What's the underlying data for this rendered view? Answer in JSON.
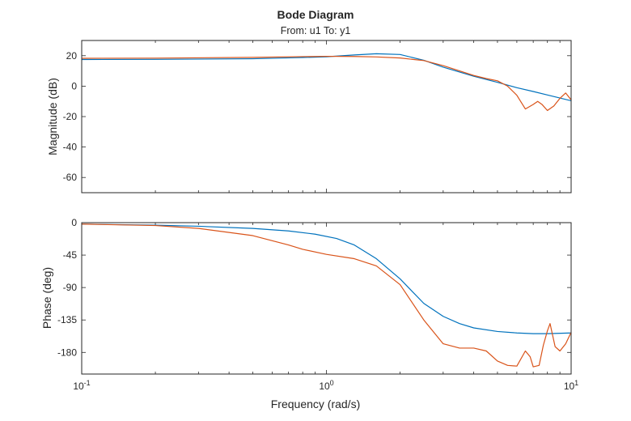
{
  "figure": {
    "title": "Bode Diagram",
    "subtitle": "From: u1  To: y1",
    "xlabel": "Frequency (rad/s)"
  },
  "chart_data": [
    {
      "type": "line",
      "panel": "magnitude",
      "ylabel": "Magnitude (dB)",
      "xscale": "log",
      "xlim": [
        0.1,
        10
      ],
      "ylim": [
        -70,
        30
      ],
      "yticks": [
        20,
        0,
        -20,
        -40,
        -60
      ],
      "ytick_labels": [
        "20",
        "0",
        "-20",
        "-40",
        "-60"
      ],
      "grid": false,
      "series": [
        {
          "color": "#0072BD",
          "x": [
            0.1,
            0.2,
            0.5,
            0.8,
            1.0,
            1.3,
            1.6,
            2.0,
            2.5,
            3.0,
            4.0,
            5.0,
            6.0,
            7.0,
            8.0,
            9.0,
            10.0
          ],
          "y": [
            17.5,
            17.6,
            18.0,
            18.8,
            19.3,
            20.5,
            21.3,
            20.8,
            17.0,
            12.5,
            6.5,
            2.5,
            -1.0,
            -3.5,
            -5.8,
            -7.8,
            -9.6
          ]
        },
        {
          "color": "#D95319",
          "x": [
            0.1,
            0.2,
            0.5,
            0.8,
            1.0,
            1.3,
            1.6,
            2.0,
            2.5,
            3.0,
            3.5,
            4.0,
            4.5,
            5.0,
            5.5,
            6.0,
            6.5,
            7.0,
            7.3,
            7.6,
            8.0,
            8.5,
            9.0,
            9.5,
            10.0
          ],
          "y": [
            18.3,
            18.4,
            18.9,
            19.4,
            19.6,
            19.5,
            19.2,
            18.5,
            16.8,
            13.5,
            10.0,
            7.0,
            5.0,
            3.5,
            0.0,
            -6.0,
            -15.0,
            -12.0,
            -10.0,
            -12.0,
            -16.0,
            -13.0,
            -8.0,
            -4.5,
            -9.0
          ]
        }
      ]
    },
    {
      "type": "line",
      "panel": "phase",
      "ylabel": "Phase (deg)",
      "xscale": "log",
      "xlim": [
        0.1,
        10
      ],
      "xticks": [
        0.1,
        1,
        10
      ],
      "xtick_labels": [
        {
          "base": "10",
          "exp": "-1"
        },
        {
          "base": "10",
          "exp": "0"
        },
        {
          "base": "10",
          "exp": "1"
        }
      ],
      "ylim": [
        -210,
        0
      ],
      "yticks": [
        0,
        -45,
        -90,
        -135,
        -180
      ],
      "ytick_labels": [
        "0",
        "-45",
        "-90",
        "-135",
        "-180"
      ],
      "grid": false,
      "series": [
        {
          "color": "#0072BD",
          "x": [
            0.1,
            0.2,
            0.3,
            0.5,
            0.7,
            0.9,
            1.1,
            1.3,
            1.6,
            2.0,
            2.5,
            3.0,
            3.5,
            4.0,
            5.0,
            6.0,
            7.0,
            8.0,
            10.0
          ],
          "y": [
            -2,
            -3.5,
            -5,
            -8,
            -11.5,
            -16,
            -22,
            -31,
            -50,
            -78,
            -112,
            -130,
            -140,
            -146,
            -151,
            -153,
            -154,
            -154,
            -153
          ]
        },
        {
          "color": "#D95319",
          "x": [
            0.1,
            0.2,
            0.3,
            0.5,
            0.7,
            0.8,
            1.0,
            1.3,
            1.6,
            2.0,
            2.5,
            3.0,
            3.5,
            4.0,
            4.5,
            5.0,
            5.5,
            6.0,
            6.5,
            6.8,
            7.0,
            7.4,
            7.7,
            8.0,
            8.2,
            8.6,
            9.0,
            9.5,
            10.0
          ],
          "y": [
            -2,
            -4,
            -8,
            -18,
            -31,
            -37,
            -44,
            -50,
            -60,
            -86,
            -135,
            -168,
            -174,
            -174,
            -178,
            -192,
            -198,
            -199,
            -178,
            -186,
            -200,
            -198,
            -170,
            -150,
            -140,
            -172,
            -178,
            -168,
            -152
          ]
        }
      ]
    }
  ]
}
